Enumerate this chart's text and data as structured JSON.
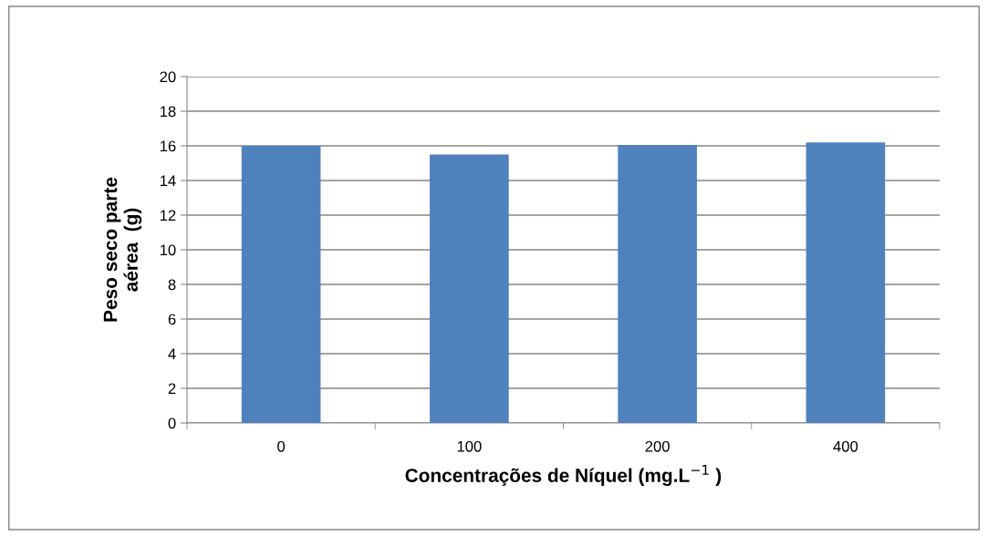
{
  "chart_data": {
    "type": "bar",
    "xlabel": "Concentrações de Níquel (mg.L$^{−1}$ )",
    "ylabel": "Peso seco parte\naérea  (g)",
    "categories": [
      "0",
      "100",
      "200",
      "400"
    ],
    "values": [
      16.0,
      15.5,
      16.05,
      16.2
    ],
    "color": "#4f81bd",
    "ylim": [
      0,
      20
    ],
    "yticks": [
      0,
      2,
      4,
      6,
      8,
      10,
      12,
      14,
      16,
      18,
      20
    ],
    "grid": "y",
    "legend": false
  }
}
